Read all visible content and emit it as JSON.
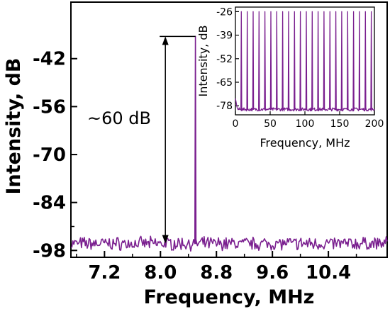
{
  "chart_data": [
    {
      "type": "line",
      "role": "main",
      "xlabel": "Frequency, MHz",
      "ylabel": "Intensity, dB",
      "xlim": [
        6.72,
        11.24
      ],
      "ylim": [
        -100,
        -25.5
      ],
      "xticks": [
        7.2,
        8.0,
        8.8,
        9.6,
        10.4
      ],
      "xtick_labels": [
        "7.2",
        "8.0",
        "8.8",
        "9.6",
        "10.4"
      ],
      "yticks": [
        -42,
        -56,
        -70,
        -84,
        -98
      ],
      "ytick_labels": [
        "-42",
        "-56",
        "-70",
        "-84",
        "-98"
      ],
      "grid": false,
      "series_color": "#7a1f8f",
      "noise_floor_db": -96,
      "peak": {
        "x": 8.5,
        "y": -35.5
      },
      "annotation": {
        "text": "~60 dB",
        "x": 8.07,
        "y_top": -35.5,
        "y_bottom": -96
      }
    },
    {
      "type": "line",
      "role": "inset",
      "xlabel": "Frequency, MHz",
      "ylabel": "Intensity, dB",
      "xlim": [
        0,
        200
      ],
      "ylim": [
        -83,
        -23.5
      ],
      "xticks": [
        0,
        50,
        100,
        150,
        200
      ],
      "xtick_labels": [
        "0",
        "50",
        "100",
        "150",
        "200"
      ],
      "yticks": [
        -26,
        -39,
        -52,
        -65,
        -78
      ],
      "ytick_labels": [
        "-26",
        "-39",
        "-52",
        "-65",
        "-78"
      ],
      "grid": false,
      "series_color": "#7a1f8f",
      "comb_lines_mhz": [
        8.5,
        17,
        25.5,
        34,
        42.5,
        51,
        59.5,
        68,
        76.5,
        85,
        93.5,
        102,
        110.5,
        119,
        127.5,
        136,
        144.5,
        153,
        161.5,
        170,
        178.5,
        187,
        195.5
      ],
      "comb_peak_db": -26,
      "noise_floor_db": -80
    }
  ]
}
